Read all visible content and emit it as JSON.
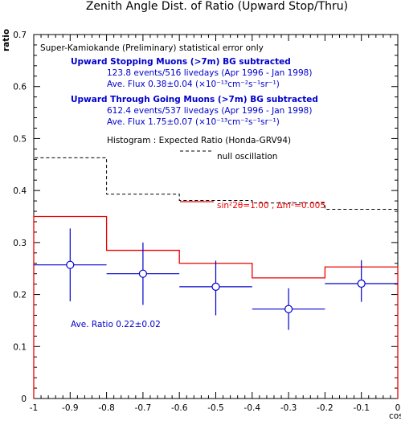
{
  "chart_data": {
    "type": "scatter",
    "title": "Zenith Angle Dist. of Ratio (Upward Stop/Thru)",
    "xlabel": "cosθ",
    "ylabel": "ratio",
    "xlim": [
      -1,
      0
    ],
    "ylim": [
      0,
      0.7
    ],
    "x_ticks": [
      "-1",
      "-0.9",
      "-0.8",
      "-0.7",
      "-0.6",
      "-0.5",
      "-0.4",
      "-0.3",
      "-0.2",
      "-0.1",
      "0"
    ],
    "y_ticks": [
      "0",
      "0.1",
      "0.2",
      "0.3",
      "0.4",
      "0.5",
      "0.6",
      "0.7"
    ],
    "data_points": [
      {
        "x": -0.9,
        "y": 0.257,
        "xerr": 0.1,
        "yerr_low": 0.07,
        "yerr_high": 0.07
      },
      {
        "x": -0.7,
        "y": 0.24,
        "xerr": 0.1,
        "yerr_low": 0.06,
        "yerr_high": 0.06
      },
      {
        "x": -0.5,
        "y": 0.215,
        "xerr": 0.1,
        "yerr_low": 0.055,
        "yerr_high": 0.05
      },
      {
        "x": -0.3,
        "y": 0.172,
        "xerr": 0.1,
        "yerr_low": 0.04,
        "yerr_high": 0.04
      },
      {
        "x": -0.1,
        "y": 0.221,
        "xerr": 0.1,
        "yerr_low": 0.035,
        "yerr_high": 0.045
      }
    ],
    "series": [
      {
        "name": "null oscillation",
        "style": "dashed",
        "color": "#000000",
        "bin_edges": [
          -1,
          -0.8,
          -0.6,
          -0.4,
          -0.2,
          0
        ],
        "values": [
          0.463,
          0.393,
          0.381,
          0.376,
          0.364
        ]
      },
      {
        "name": "sin²2θ=1.00 , Δm²=0.005",
        "style": "solid",
        "color": "#ee0000",
        "bin_edges": [
          -1,
          -0.8,
          -0.6,
          -0.4,
          -0.2,
          0
        ],
        "values": [
          0.35,
          0.285,
          0.26,
          0.232,
          0.253
        ]
      }
    ],
    "annotations": {
      "header": "Super-Kamiokande (Preliminary)  statistical error only",
      "stop_title": "Upward Stopping Muons (>7m) BG subtracted",
      "stop_events": "123.8 events/516 livedays (Apr 1996 - Jan 1998)",
      "stop_flux": "Ave. Flux  0.38±0.04 (×10⁻¹³cm⁻²s⁻¹sr⁻¹)",
      "thru_title": "Upward Through Going Muons (>7m) BG subtracted",
      "thru_events": "612.4 events/537 livedays (Apr 1996 - Jan 1998)",
      "thru_flux": "Ave. Flux  1.75±0.07 (×10⁻¹³cm⁻²s⁻¹sr⁻¹)",
      "histogram_label": "Histogram : Expected Ratio (Honda-GRV94)",
      "null_label": "null oscillation",
      "osc_label": "sin²2θ=1.00 , Δm²=0.005",
      "ave_ratio": "Ave. Ratio  0.22±0.02"
    },
    "colors": {
      "data": "#0000cc",
      "oscillation": "#ee0000",
      "null": "#000000"
    },
    "grid": false
  }
}
